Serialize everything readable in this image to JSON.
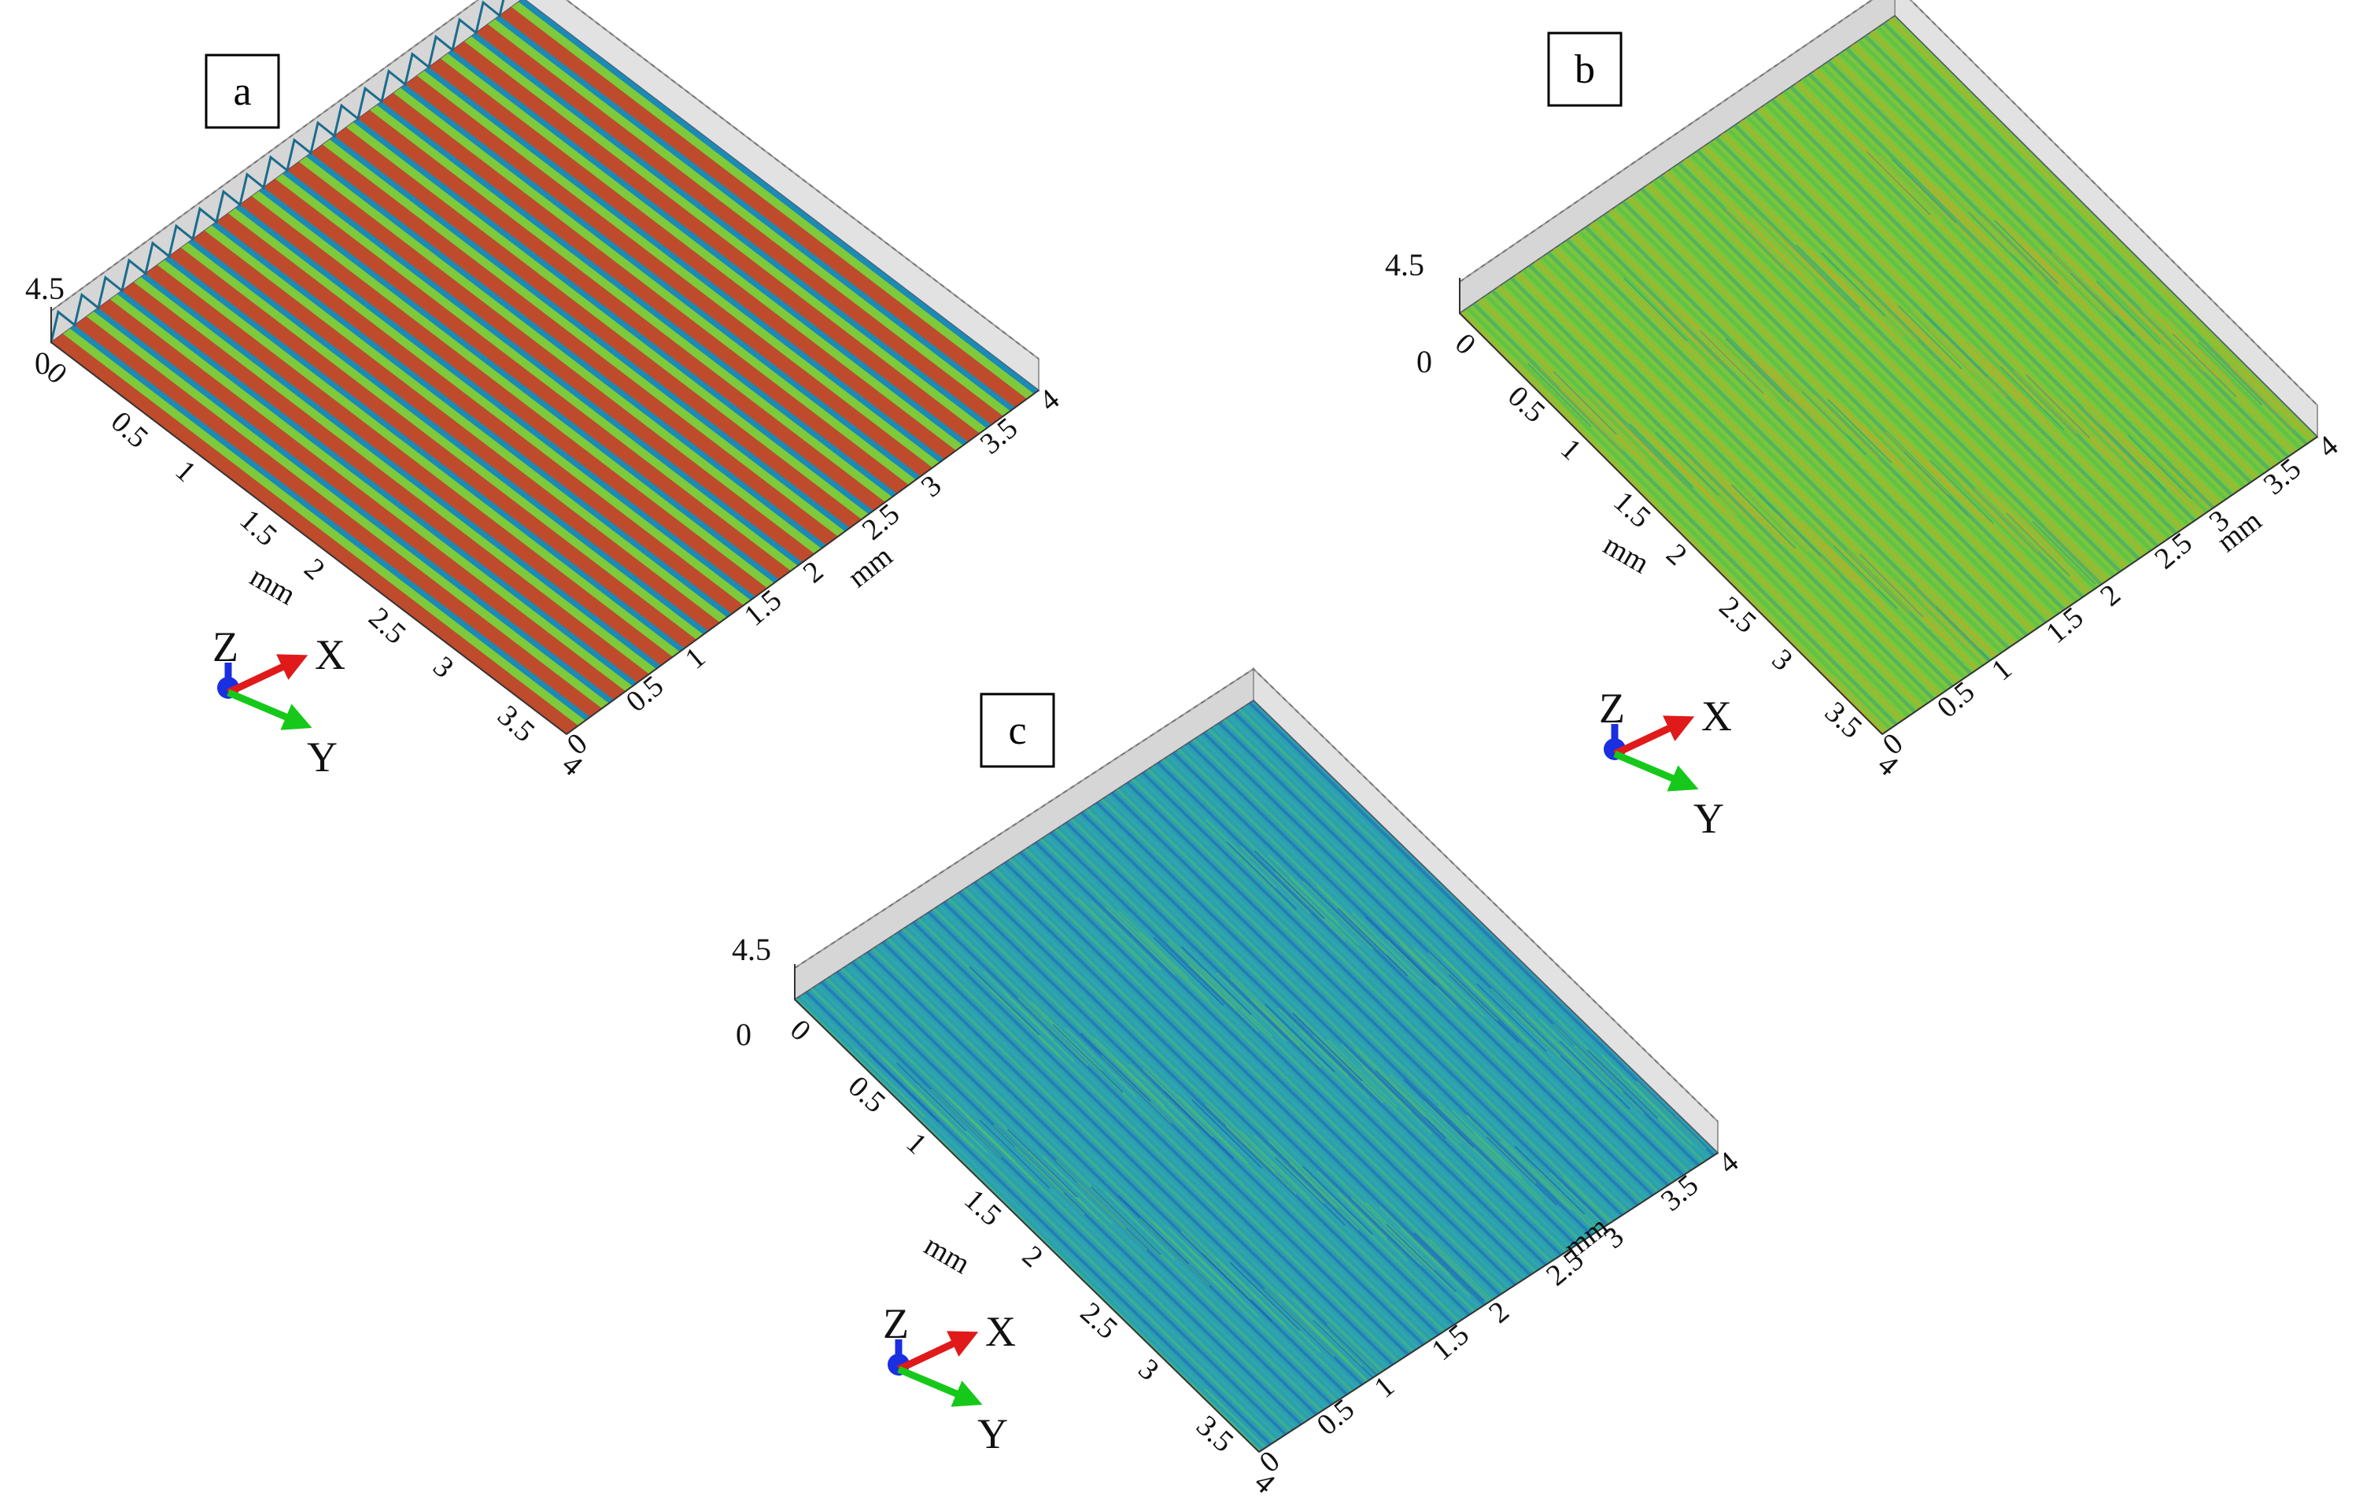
{
  "figure": {
    "panels": [
      {
        "id": "a",
        "label": "a",
        "z_top_label": "4.5",
        "z_zero_label": "0",
        "x_ticks": [
          "0",
          "0.5",
          "1",
          "1.5",
          "2",
          "2.5",
          "3",
          "3.5",
          "4"
        ],
        "y_ticks": [
          "0",
          "0.5",
          "1",
          "1.5",
          "2",
          "2.5",
          "3",
          "3.5",
          "4"
        ],
        "x_unit": "mm",
        "y_unit": "mm",
        "colors": {
          "base": "#2fae8c",
          "ridge": "#d83a1c",
          "mid": "#8ccf2c",
          "valley": "#1a86b8"
        },
        "triad": {
          "z": "Z",
          "x": "X",
          "y": "Y"
        }
      },
      {
        "id": "b",
        "label": "b",
        "z_top_label": "4.5",
        "z_zero_label": "0",
        "x_ticks": [
          "0",
          "0.5",
          "1",
          "1.5",
          "2",
          "2.5",
          "3",
          "3.5",
          "4"
        ],
        "y_ticks": [
          "0",
          "0.5",
          "1",
          "1.5",
          "2",
          "2.5",
          "3",
          "3.5",
          "4"
        ],
        "x_unit": "mm",
        "y_unit": "mm",
        "colors": {
          "base": "#7cc63a",
          "ridge": "#c8a62a",
          "mid": "#3fbf5a",
          "valley": "#2a9a8a"
        },
        "triad": {
          "z": "Z",
          "x": "X",
          "y": "Y"
        }
      },
      {
        "id": "c",
        "label": "c",
        "z_top_label": "4.5",
        "z_zero_label": "0",
        "x_ticks": [
          "0",
          "0.5",
          "1",
          "1.5",
          "2",
          "2.5",
          "3",
          "3.5",
          "4"
        ],
        "y_ticks": [
          "0",
          "0.5",
          "1",
          "1.5",
          "2",
          "2.5",
          "3",
          "3.5",
          "4"
        ],
        "x_unit": "mm",
        "y_unit": "mm",
        "colors": {
          "base": "#2a9fb0",
          "ridge": "#55c06a",
          "mid": "#33b0a8",
          "valley": "#1f57b8"
        },
        "triad": {
          "z": "Z",
          "x": "X",
          "y": "Y"
        }
      }
    ],
    "triad_colors": {
      "z": "#1a2fe0",
      "x": "#e01a1a",
      "y": "#16c81a"
    }
  }
}
